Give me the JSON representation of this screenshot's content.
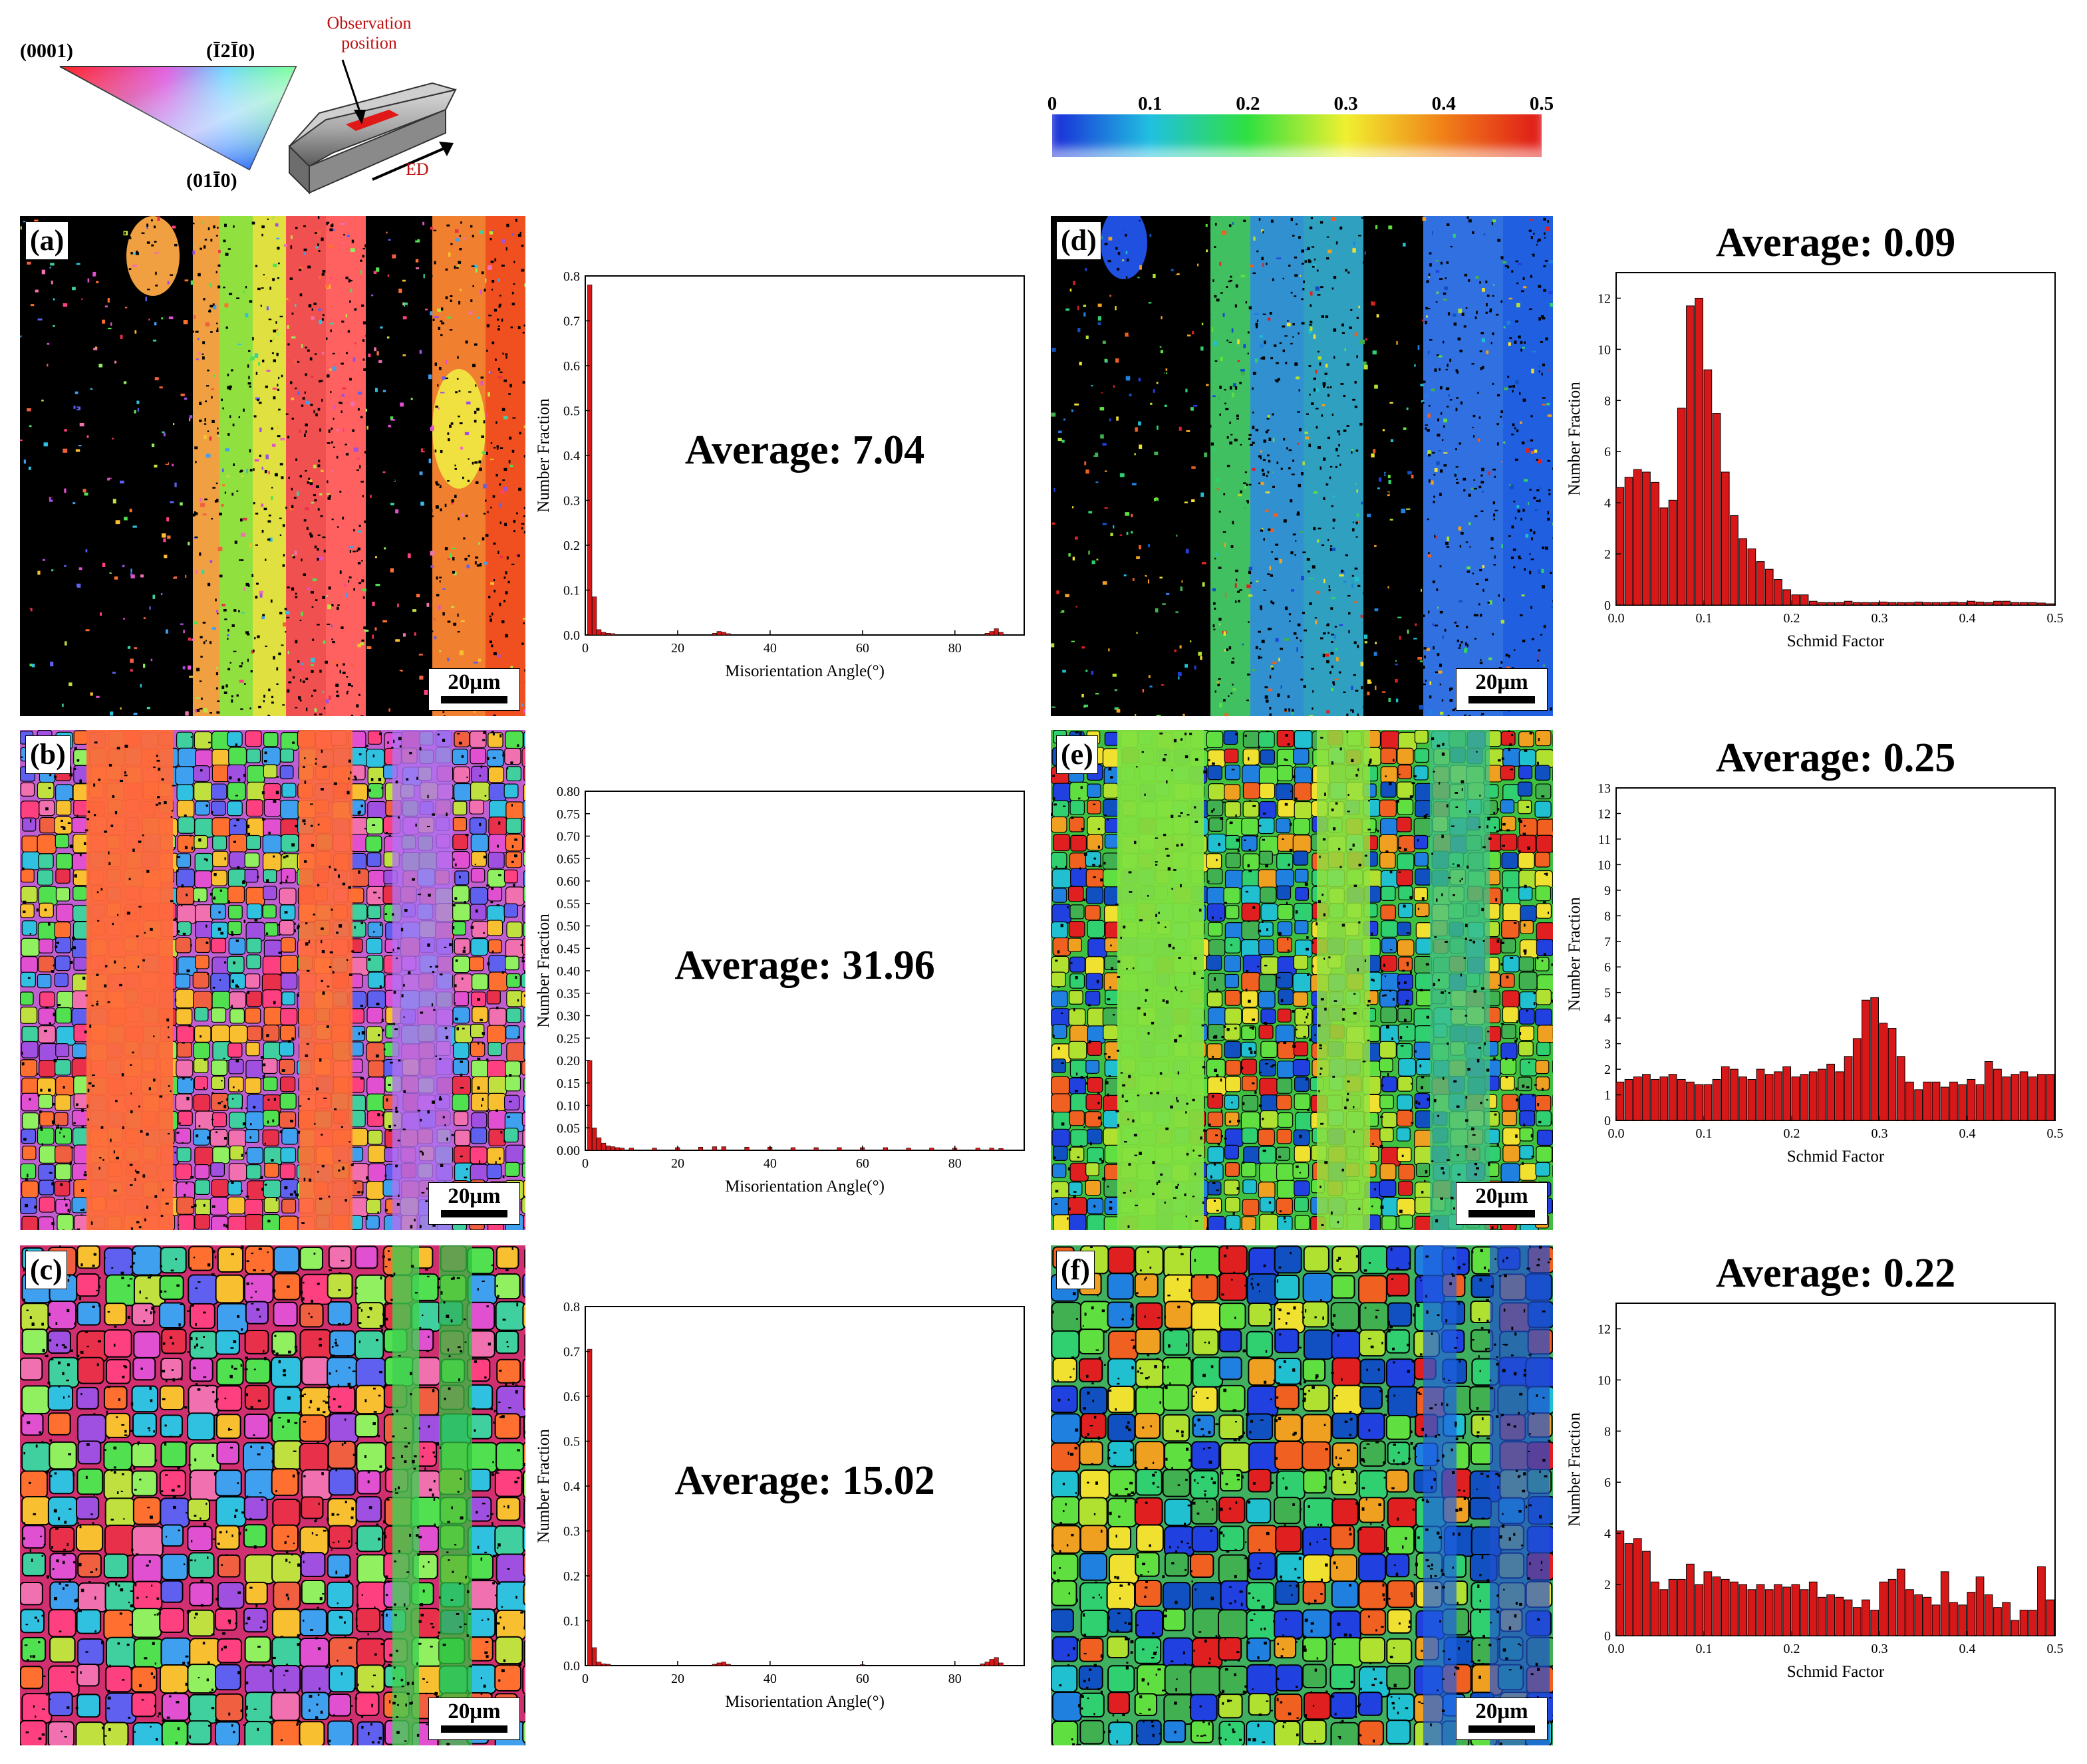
{
  "legend": {
    "ipf_labels": {
      "top_left": "(0001)",
      "top_right": "(Ī2Ī0)",
      "bottom": "(01Ī0)"
    },
    "sample": {
      "observation_label": "Observation position",
      "direction_label": "ED"
    },
    "colorbar": {
      "ticks": [
        "0",
        "0.1",
        "0.2",
        "0.3",
        "0.4",
        "0.5"
      ],
      "colors": [
        "#1a2cd8",
        "#20c0e0",
        "#30e040",
        "#f0f030",
        "#f08018",
        "#e01818"
      ]
    }
  },
  "maps": [
    {
      "label": "(a)",
      "scale": "20μm",
      "type": "ipf"
    },
    {
      "label": "(b)",
      "scale": "20μm",
      "type": "ipf"
    },
    {
      "label": "(c)",
      "scale": "20μm",
      "type": "ipf"
    },
    {
      "label": "(d)",
      "scale": "20μm",
      "type": "schmid"
    },
    {
      "label": "(e)",
      "scale": "20μm",
      "type": "schmid"
    },
    {
      "label": "(f)",
      "scale": "20μm",
      "type": "schmid"
    }
  ],
  "chart_data": [
    {
      "type": "bar",
      "panel": "a",
      "xlabel": "Misorientation Angle(°)",
      "ylabel": "Number Fraction",
      "annotation": "Average: 7.04",
      "xlim": [
        0,
        95
      ],
      "ylim": [
        0,
        0.8
      ],
      "xticks": [
        "0",
        "20",
        "40",
        "60",
        "80"
      ],
      "yticks": [
        "0.0",
        "0.1",
        "0.2",
        "0.3",
        "0.4",
        "0.5",
        "0.6",
        "0.7",
        "0.8"
      ],
      "bin_width": 1,
      "x": [
        1,
        2,
        3,
        4,
        5,
        6,
        28,
        29,
        30,
        31,
        87,
        88,
        89,
        90
      ],
      "values": [
        0.78,
        0.085,
        0.012,
        0.006,
        0.004,
        0.003,
        0.004,
        0.008,
        0.006,
        0.003,
        0.004,
        0.008,
        0.014,
        0.006
      ]
    },
    {
      "type": "bar",
      "panel": "b",
      "xlabel": "Misorientation Angle(°)",
      "ylabel": "Number Fraction",
      "annotation": "Average: 31.96",
      "xlim": [
        0,
        95
      ],
      "ylim": [
        0,
        0.8
      ],
      "xticks": [
        "0",
        "20",
        "40",
        "60",
        "80"
      ],
      "yticks": [
        "0.00",
        "0.05",
        "0.10",
        "0.15",
        "0.20",
        "0.25",
        "0.30",
        "0.35",
        "0.40",
        "0.45",
        "0.50",
        "0.55",
        "0.60",
        "0.65",
        "0.70",
        "0.75",
        "0.80"
      ],
      "bin_width": 1,
      "x": [
        1,
        2,
        3,
        4,
        5,
        6,
        7,
        8,
        10,
        15,
        20,
        25,
        28,
        30,
        35,
        40,
        45,
        50,
        55,
        60,
        65,
        70,
        75,
        80,
        85,
        88,
        90
      ],
      "values": [
        0.2,
        0.05,
        0.028,
        0.016,
        0.01,
        0.008,
        0.006,
        0.005,
        0.005,
        0.005,
        0.006,
        0.007,
        0.008,
        0.008,
        0.007,
        0.007,
        0.006,
        0.006,
        0.006,
        0.006,
        0.006,
        0.005,
        0.005,
        0.005,
        0.005,
        0.005,
        0.004
      ]
    },
    {
      "type": "bar",
      "panel": "c",
      "xlabel": "Misorientation Angle(°)",
      "ylabel": "Number Fraction",
      "annotation": "Average: 15.02",
      "xlim": [
        0,
        95
      ],
      "ylim": [
        0,
        0.8
      ],
      "xticks": [
        "0",
        "20",
        "40",
        "60",
        "80"
      ],
      "yticks": [
        "0.0",
        "0.1",
        "0.2",
        "0.3",
        "0.4",
        "0.5",
        "0.6",
        "0.7",
        "0.8"
      ],
      "bin_width": 1,
      "x": [
        1,
        2,
        3,
        4,
        5,
        28,
        29,
        30,
        31,
        60,
        86,
        87,
        88,
        89,
        90
      ],
      "values": [
        0.705,
        0.04,
        0.008,
        0.004,
        0.003,
        0.003,
        0.006,
        0.008,
        0.003,
        0.002,
        0.004,
        0.008,
        0.014,
        0.018,
        0.006
      ]
    },
    {
      "type": "bar",
      "panel": "d",
      "xlabel": "Schmid Factor",
      "ylabel": "Number Fraction",
      "annotation": "Average: 0.09",
      "xlim": [
        0,
        0.5
      ],
      "ylim": [
        0,
        13
      ],
      "xticks": [
        "0.0",
        "0.1",
        "0.2",
        "0.3",
        "0.4",
        "0.5"
      ],
      "yticks": [
        "0",
        "2",
        "4",
        "6",
        "8",
        "10",
        "12"
      ],
      "bin_width": 0.01,
      "values": [
        4.6,
        5.0,
        5.3,
        5.2,
        4.8,
        3.8,
        4.1,
        7.7,
        11.7,
        12.0,
        9.2,
        7.5,
        5.2,
        3.5,
        2.6,
        2.2,
        1.7,
        1.4,
        1.0,
        0.6,
        0.4,
        0.4,
        0.15,
        0.1,
        0.1,
        0.1,
        0.15,
        0.1,
        0.1,
        0.1,
        0.12,
        0.1,
        0.1,
        0.1,
        0.12,
        0.1,
        0.1,
        0.1,
        0.12,
        0.1,
        0.15,
        0.12,
        0.1,
        0.15,
        0.15,
        0.1,
        0.1,
        0.1,
        0.08,
        0.05
      ]
    },
    {
      "type": "bar",
      "panel": "e",
      "xlabel": "Schmid Factor",
      "ylabel": "Number Fraction",
      "annotation": "Average: 0.25",
      "xlim": [
        0,
        0.5
      ],
      "ylim": [
        0,
        13
      ],
      "xticks": [
        "0.0",
        "0.1",
        "0.2",
        "0.3",
        "0.4",
        "0.5"
      ],
      "yticks": [
        "0",
        "1",
        "2",
        "3",
        "4",
        "5",
        "6",
        "7",
        "8",
        "9",
        "10",
        "11",
        "12",
        "13"
      ],
      "bin_width": 0.01,
      "values": [
        1.5,
        1.6,
        1.7,
        1.8,
        1.6,
        1.7,
        1.8,
        1.6,
        1.5,
        1.4,
        1.4,
        1.6,
        2.1,
        2.0,
        1.7,
        1.6,
        2.0,
        1.8,
        1.9,
        2.1,
        1.7,
        1.8,
        1.9,
        2.0,
        2.2,
        1.9,
        2.5,
        3.2,
        4.7,
        4.8,
        3.8,
        3.6,
        2.5,
        1.5,
        1.2,
        1.5,
        1.5,
        1.3,
        1.5,
        1.4,
        1.6,
        1.4,
        2.3,
        2.0,
        1.7,
        1.8,
        1.9,
        1.7,
        1.8,
        1.8
      ]
    },
    {
      "type": "bar",
      "panel": "f",
      "xlabel": "Schmid Factor",
      "ylabel": "Number Fraction",
      "annotation": "Average: 0.22",
      "xlim": [
        0,
        0.5
      ],
      "ylim": [
        0,
        13
      ],
      "xticks": [
        "0.0",
        "0.1",
        "0.2",
        "0.3",
        "0.4",
        "0.5"
      ],
      "yticks": [
        "0",
        "2",
        "4",
        "6",
        "8",
        "10",
        "12"
      ],
      "bin_width": 0.01,
      "values": [
        4.1,
        3.6,
        3.8,
        3.3,
        2.1,
        1.8,
        2.2,
        2.2,
        2.8,
        2.0,
        2.5,
        2.3,
        2.2,
        2.1,
        2.0,
        1.8,
        2.0,
        1.8,
        2.0,
        1.9,
        2.0,
        1.8,
        2.1,
        1.5,
        1.6,
        1.5,
        1.4,
        1.1,
        1.4,
        1.0,
        2.1,
        2.2,
        2.6,
        1.8,
        1.6,
        1.5,
        1.2,
        2.5,
        1.3,
        1.2,
        1.7,
        2.3,
        1.6,
        1.1,
        1.3,
        0.6,
        1.0,
        1.0,
        2.7,
        1.4
      ]
    }
  ]
}
